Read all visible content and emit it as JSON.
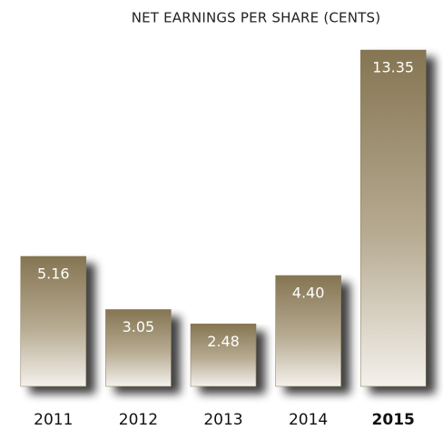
{
  "chart_data": {
    "type": "bar",
    "title": "NET EARNINGS PER SHARE (CENTS)",
    "categories": [
      "2011",
      "2012",
      "2013",
      "2014",
      "2015"
    ],
    "values": [
      5.16,
      3.05,
      2.48,
      4.4,
      13.35
    ],
    "value_labels": [
      "5.16",
      "3.05",
      "2.48",
      "4.40",
      "13.35"
    ],
    "color": "#857552",
    "highlight": "2015"
  }
}
